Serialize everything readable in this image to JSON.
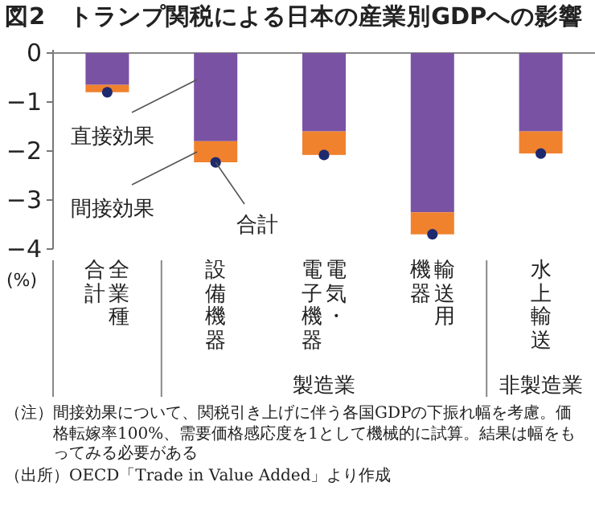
{
  "chart_data": {
    "type": "bar",
    "title": "図2　トランプ関税による日本の産業別GDPへの影響",
    "ylabel": "(%)",
    "categories": [
      "全業種合計",
      "設備機器",
      "電気・電子機器",
      "輸送用機器",
      "水上輸送"
    ],
    "stacked": true,
    "ylim": [
      -4,
      0
    ],
    "yticks": [
      0,
      {
        "value": -1,
        "label": "−1"
      },
      {
        "value": -2,
        "label": "−2"
      },
      {
        "value": -3,
        "label": "−3"
      },
      {
        "value": -4,
        "label": "−4"
      }
    ],
    "grid": false,
    "series": [
      {
        "name": "直接効果",
        "color": "#7a52a4",
        "values": [
          -0.65,
          -1.8,
          -1.6,
          -3.25,
          -1.6
        ]
      },
      {
        "name": "間接効果",
        "color": "#f0822e",
        "values": [
          -0.15,
          -0.43,
          -0.48,
          -0.45,
          -0.45
        ]
      },
      {
        "name": "合計",
        "type": "scatter",
        "marker": "circle",
        "color": "#1d2a6e",
        "values": [
          -0.8,
          -2.23,
          -2.08,
          -3.7,
          -2.05
        ]
      }
    ],
    "annotations": [
      "製造業",
      "非製造業",
      "（注）間接効果について、関税引き上げに伴う各国GDPの下振れ幅を考慮。価格転嫁率100%、需要価格感応度を1として機械的に試算。結果は幅をもってみる必要がある",
      "（出所）OECD「Trade in Value Added」より作成"
    ]
  }
}
